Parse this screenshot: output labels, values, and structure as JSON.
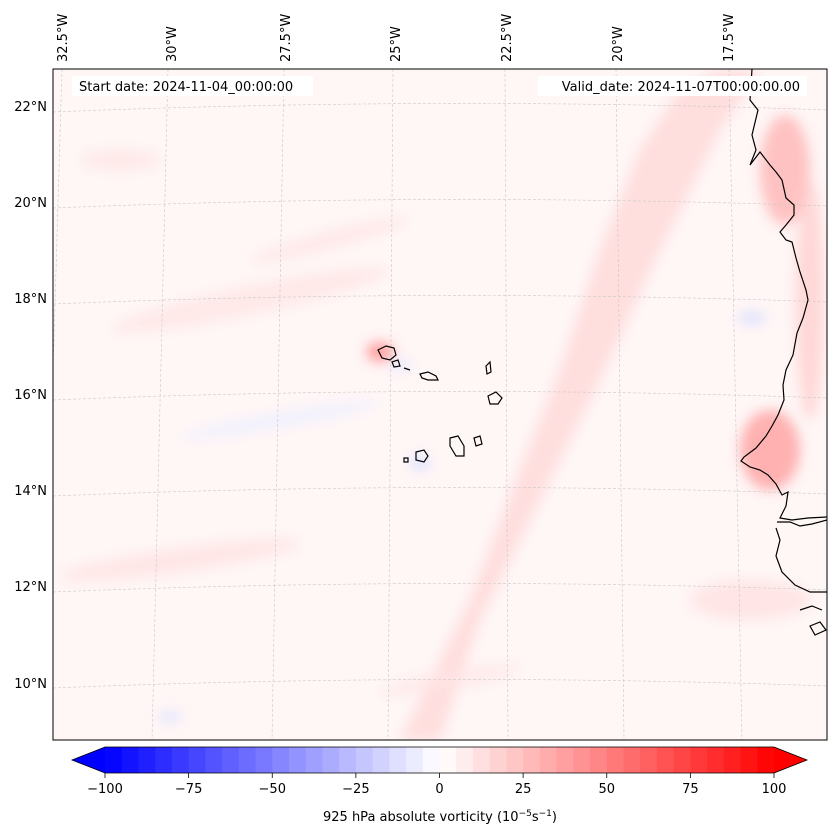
{
  "map": {
    "start_date": "Start date: 2024-11-04_00:00:00",
    "valid_date": "Valid_date: 2024-11-07T00:00:00.00",
    "lon_labels": [
      "32.5°W",
      "30°W",
      "27.5°W",
      "25°W",
      "22.5°W",
      "20°W",
      "17.5°W"
    ],
    "lat_labels": [
      "22°N",
      "20°N",
      "18°N",
      "16°N",
      "14°N",
      "12°N",
      "10°N"
    ],
    "colorbar": {
      "title": "925 hPa absolute vorticity (10",
      "title_exp1": "−5",
      "title_mid": "s",
      "title_exp2": "−1",
      "title_end": ")",
      "min": -100,
      "max": 100,
      "ticks": [
        "−100",
        "−75",
        "−50",
        "−25",
        "0",
        "25",
        "50",
        "75",
        "100"
      ],
      "colors": {
        "negative": "#0000ff",
        "neutral": "#ffffff",
        "positive": "#ff0000"
      }
    },
    "colors": {
      "coastline": "#000000",
      "grid": "#c8c8c8",
      "field_background": "#fff6f6"
    }
  }
}
